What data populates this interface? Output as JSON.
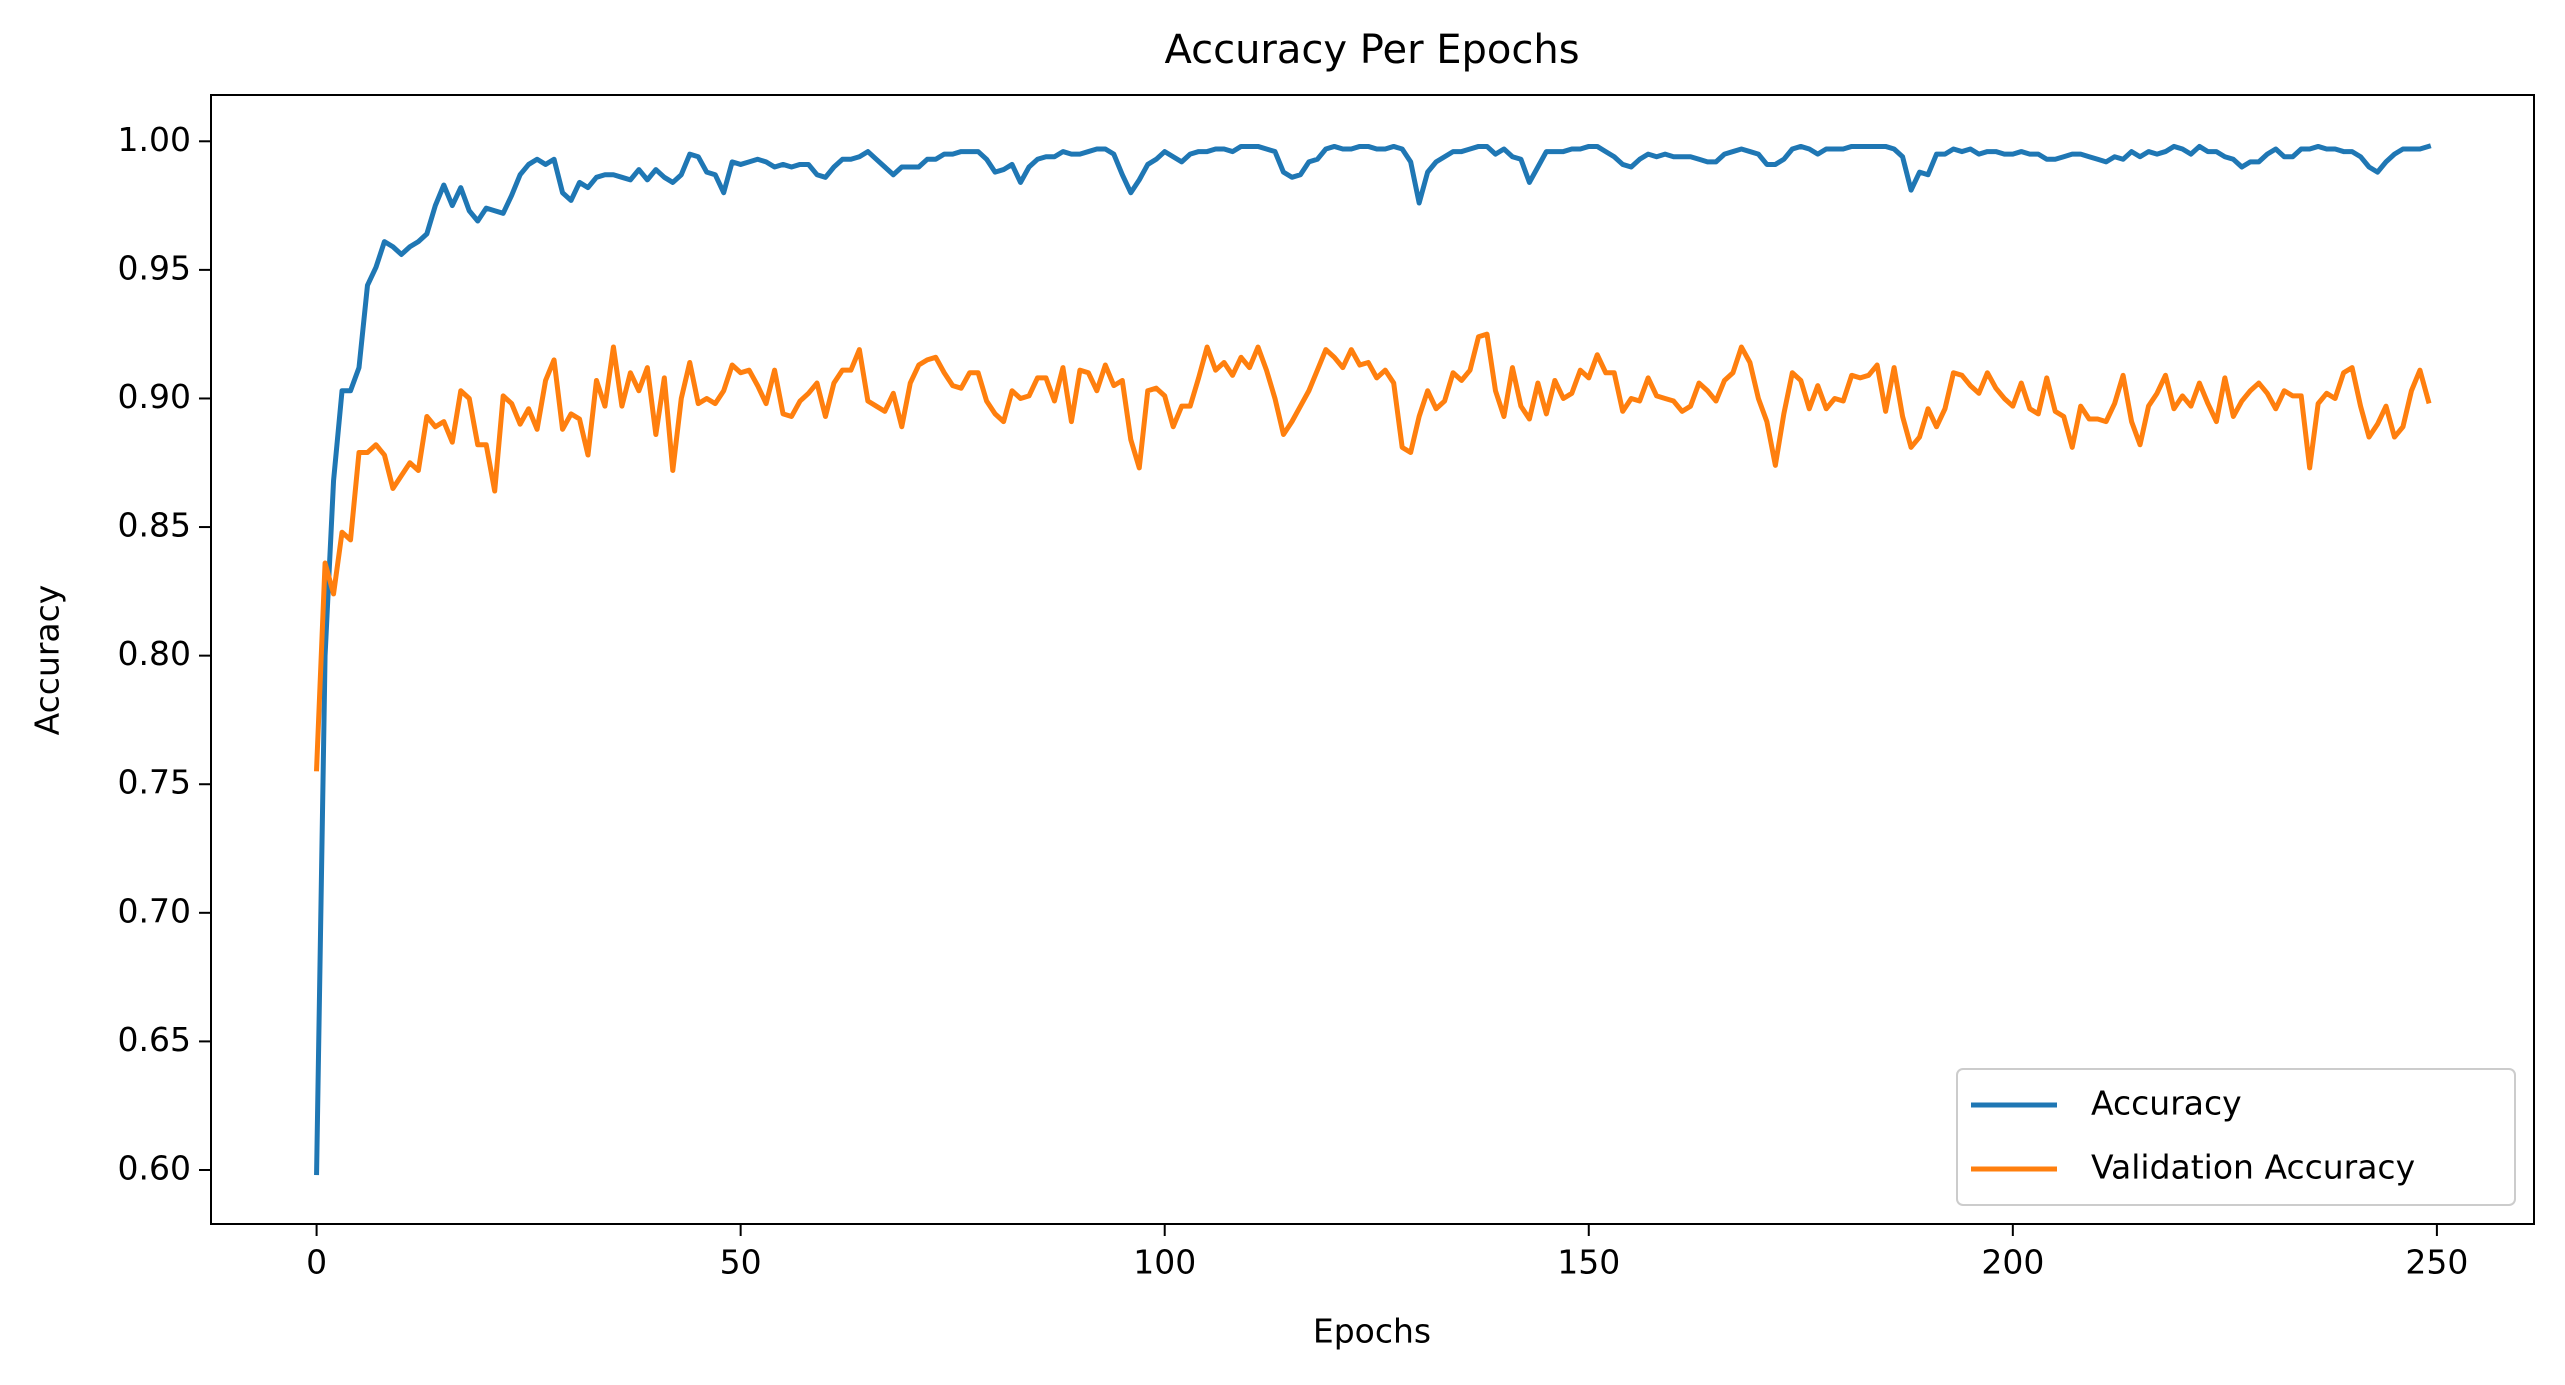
{
  "chart_data": {
    "type": "line",
    "title": "Accuracy Per Epochs",
    "xlabel": "Epochs",
    "ylabel": "Accuracy",
    "x": [
      0,
      1,
      2,
      3,
      4,
      5,
      6,
      7,
      8,
      9,
      10,
      11,
      12,
      13,
      14,
      15,
      16,
      17,
      18,
      19,
      20,
      21,
      22,
      23,
      24,
      25,
      26,
      27,
      28,
      29,
      30,
      31,
      32,
      33,
      34,
      35,
      36,
      37,
      38,
      39,
      40,
      41,
      42,
      43,
      44,
      45,
      46,
      47,
      48,
      49,
      50,
      51,
      52,
      53,
      54,
      55,
      56,
      57,
      58,
      59,
      60,
      61,
      62,
      63,
      64,
      65,
      66,
      67,
      68,
      69,
      70,
      71,
      72,
      73,
      74,
      75,
      76,
      77,
      78,
      79,
      80,
      81,
      82,
      83,
      84,
      85,
      86,
      87,
      88,
      89,
      90,
      91,
      92,
      93,
      94,
      95,
      96,
      97,
      98,
      99,
      100,
      101,
      102,
      103,
      104,
      105,
      106,
      107,
      108,
      109,
      110,
      111,
      112,
      113,
      114,
      115,
      116,
      117,
      118,
      119,
      120,
      121,
      122,
      123,
      124,
      125,
      126,
      127,
      128,
      129,
      130,
      131,
      132,
      133,
      134,
      135,
      136,
      137,
      138,
      139,
      140,
      141,
      142,
      143,
      144,
      145,
      146,
      147,
      148,
      149,
      150,
      151,
      152,
      153,
      154,
      155,
      156,
      157,
      158,
      159,
      160,
      161,
      162,
      163,
      164,
      165,
      166,
      167,
      168,
      169,
      170,
      171,
      172,
      173,
      174,
      175,
      176,
      177,
      178,
      179,
      180,
      181,
      182,
      183,
      184,
      185,
      186,
      187,
      188,
      189,
      190,
      191,
      192,
      193,
      194,
      195,
      196,
      197,
      198,
      199,
      200,
      201,
      202,
      203,
      204,
      205,
      206,
      207,
      208,
      209,
      210,
      211,
      212,
      213,
      214,
      215,
      216,
      217,
      218,
      219,
      220,
      221,
      222,
      223,
      224,
      225,
      226,
      227,
      228,
      229,
      230,
      231,
      232,
      233,
      234,
      235,
      236,
      237,
      238,
      239,
      240,
      241,
      242,
      243,
      244,
      245,
      246,
      247,
      248,
      249
    ],
    "series": [
      {
        "name": "Accuracy",
        "color": "#1f77b4",
        "values": [
          0.599,
          0.8,
          0.868,
          0.903,
          0.903,
          0.912,
          0.944,
          0.951,
          0.961,
          0.959,
          0.956,
          0.959,
          0.961,
          0.964,
          0.975,
          0.983,
          0.975,
          0.982,
          0.973,
          0.969,
          0.974,
          0.973,
          0.972,
          0.979,
          0.987,
          0.991,
          0.993,
          0.991,
          0.993,
          0.98,
          0.977,
          0.984,
          0.982,
          0.986,
          0.987,
          0.987,
          0.986,
          0.985,
          0.989,
          0.985,
          0.989,
          0.986,
          0.984,
          0.987,
          0.995,
          0.994,
          0.988,
          0.987,
          0.98,
          0.992,
          0.991,
          0.992,
          0.993,
          0.992,
          0.99,
          0.991,
          0.99,
          0.991,
          0.991,
          0.987,
          0.986,
          0.99,
          0.993,
          0.993,
          0.994,
          0.996,
          0.993,
          0.99,
          0.987,
          0.99,
          0.99,
          0.99,
          0.993,
          0.993,
          0.995,
          0.995,
          0.996,
          0.996,
          0.996,
          0.993,
          0.988,
          0.989,
          0.991,
          0.984,
          0.99,
          0.993,
          0.994,
          0.994,
          0.996,
          0.995,
          0.995,
          0.996,
          0.997,
          0.997,
          0.995,
          0.987,
          0.98,
          0.985,
          0.991,
          0.993,
          0.996,
          0.994,
          0.992,
          0.995,
          0.996,
          0.996,
          0.997,
          0.997,
          0.996,
          0.998,
          0.998,
          0.998,
          0.997,
          0.996,
          0.988,
          0.986,
          0.987,
          0.992,
          0.993,
          0.997,
          0.998,
          0.997,
          0.997,
          0.998,
          0.998,
          0.997,
          0.997,
          0.998,
          0.997,
          0.992,
          0.976,
          0.988,
          0.992,
          0.994,
          0.996,
          0.996,
          0.997,
          0.998,
          0.998,
          0.995,
          0.997,
          0.994,
          0.993,
          0.984,
          0.99,
          0.996,
          0.996,
          0.996,
          0.997,
          0.997,
          0.998,
          0.998,
          0.996,
          0.994,
          0.991,
          0.99,
          0.993,
          0.995,
          0.994,
          0.995,
          0.994,
          0.994,
          0.994,
          0.993,
          0.992,
          0.992,
          0.995,
          0.996,
          0.997,
          0.996,
          0.995,
          0.991,
          0.991,
          0.993,
          0.997,
          0.998,
          0.997,
          0.995,
          0.997,
          0.997,
          0.997,
          0.998,
          0.998,
          0.998,
          0.998,
          0.998,
          0.997,
          0.994,
          0.981,
          0.988,
          0.987,
          0.995,
          0.995,
          0.997,
          0.996,
          0.997,
          0.995,
          0.996,
          0.996,
          0.995,
          0.995,
          0.996,
          0.995,
          0.995,
          0.993,
          0.993,
          0.994,
          0.995,
          0.995,
          0.994,
          0.993,
          0.992,
          0.994,
          0.993,
          0.996,
          0.994,
          0.996,
          0.995,
          0.996,
          0.998,
          0.997,
          0.995,
          0.998,
          0.996,
          0.996,
          0.994,
          0.993,
          0.99,
          0.992,
          0.992,
          0.995,
          0.997,
          0.994,
          0.994,
          0.997,
          0.997,
          0.998,
          0.997,
          0.997,
          0.996,
          0.996,
          0.994,
          0.99,
          0.988,
          0.992,
          0.995,
          0.997,
          0.997,
          0.997,
          0.998
        ]
      },
      {
        "name": "Validation Accuracy",
        "color": "#ff7f0e",
        "values": [
          0.756,
          0.836,
          0.824,
          0.848,
          0.845,
          0.879,
          0.879,
          0.882,
          0.878,
          0.865,
          0.87,
          0.875,
          0.872,
          0.893,
          0.889,
          0.891,
          0.883,
          0.903,
          0.9,
          0.882,
          0.882,
          0.864,
          0.901,
          0.898,
          0.89,
          0.896,
          0.888,
          0.907,
          0.915,
          0.888,
          0.894,
          0.892,
          0.878,
          0.907,
          0.897,
          0.92,
          0.897,
          0.91,
          0.903,
          0.912,
          0.886,
          0.908,
          0.872,
          0.9,
          0.914,
          0.898,
          0.9,
          0.898,
          0.903,
          0.913,
          0.91,
          0.911,
          0.905,
          0.898,
          0.911,
          0.894,
          0.893,
          0.899,
          0.902,
          0.906,
          0.893,
          0.906,
          0.911,
          0.911,
          0.919,
          0.899,
          0.897,
          0.895,
          0.902,
          0.889,
          0.906,
          0.913,
          0.915,
          0.916,
          0.91,
          0.905,
          0.904,
          0.91,
          0.91,
          0.899,
          0.894,
          0.891,
          0.903,
          0.9,
          0.901,
          0.908,
          0.908,
          0.899,
          0.912,
          0.891,
          0.911,
          0.91,
          0.903,
          0.913,
          0.905,
          0.907,
          0.884,
          0.873,
          0.903,
          0.904,
          0.901,
          0.889,
          0.897,
          0.897,
          0.908,
          0.92,
          0.911,
          0.914,
          0.909,
          0.916,
          0.912,
          0.92,
          0.911,
          0.9,
          0.886,
          0.891,
          0.897,
          0.903,
          0.911,
          0.919,
          0.916,
          0.912,
          0.919,
          0.913,
          0.914,
          0.908,
          0.911,
          0.906,
          0.881,
          0.879,
          0.893,
          0.903,
          0.896,
          0.899,
          0.91,
          0.907,
          0.911,
          0.924,
          0.925,
          0.903,
          0.893,
          0.912,
          0.897,
          0.892,
          0.906,
          0.894,
          0.907,
          0.9,
          0.902,
          0.911,
          0.908,
          0.917,
          0.91,
          0.91,
          0.895,
          0.9,
          0.899,
          0.908,
          0.901,
          0.9,
          0.899,
          0.895,
          0.897,
          0.906,
          0.903,
          0.899,
          0.907,
          0.91,
          0.92,
          0.914,
          0.9,
          0.891,
          0.874,
          0.894,
          0.91,
          0.907,
          0.896,
          0.905,
          0.896,
          0.9,
          0.899,
          0.909,
          0.908,
          0.909,
          0.913,
          0.895,
          0.912,
          0.893,
          0.881,
          0.885,
          0.896,
          0.889,
          0.896,
          0.91,
          0.909,
          0.905,
          0.902,
          0.91,
          0.904,
          0.9,
          0.897,
          0.906,
          0.896,
          0.894,
          0.908,
          0.895,
          0.893,
          0.881,
          0.897,
          0.892,
          0.892,
          0.891,
          0.898,
          0.909,
          0.891,
          0.882,
          0.897,
          0.902,
          0.909,
          0.896,
          0.901,
          0.897,
          0.906,
          0.898,
          0.891,
          0.908,
          0.893,
          0.899,
          0.903,
          0.906,
          0.902,
          0.896,
          0.903,
          0.901,
          0.901,
          0.873,
          0.898,
          0.902,
          0.9,
          0.91,
          0.912,
          0.897,
          0.885,
          0.89,
          0.897,
          0.885,
          0.889,
          0.903,
          0.911,
          0.899
        ]
      }
    ],
    "xlim": [
      -12.45,
      261.45
    ],
    "ylim": [
      0.579,
      1.018
    ],
    "xticks": [
      0,
      50,
      100,
      150,
      200,
      250
    ],
    "yticks": [
      {
        "value": 0.6,
        "label": "0.60"
      },
      {
        "value": 0.65,
        "label": "0.65"
      },
      {
        "value": 0.7,
        "label": "0.70"
      },
      {
        "value": 0.75,
        "label": "0.75"
      },
      {
        "value": 0.8,
        "label": "0.80"
      },
      {
        "value": 0.85,
        "label": "0.85"
      },
      {
        "value": 0.9,
        "label": "0.90"
      },
      {
        "value": 0.95,
        "label": "0.95"
      },
      {
        "value": 1.0,
        "label": "1.00"
      }
    ],
    "grid": false,
    "legend": "lower right"
  }
}
